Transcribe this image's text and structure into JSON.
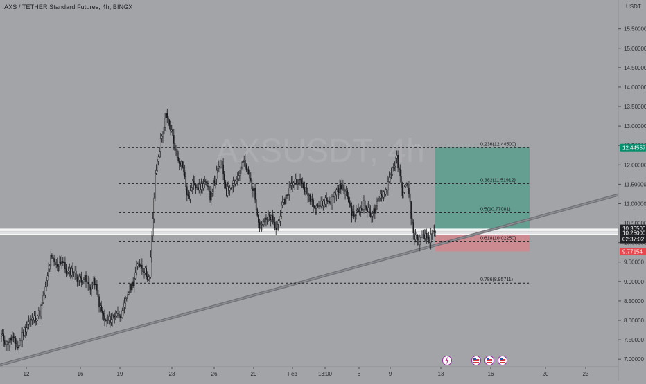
{
  "chart_data": {
    "type": "candlestick",
    "title": "AXS / TETHER Standard Futures, 4h, BINGX",
    "watermark": "AXSUSDT, 4h",
    "ylabel": "USDT",
    "ylim": [
      6.95,
      15.85
    ],
    "y_ticks": [
      "15.50000",
      "15.00000",
      "14.50000",
      "14.00000",
      "13.50000",
      "13.00000",
      "12.50000",
      "12.00000",
      "11.50000",
      "11.00000",
      "10.50000",
      "10.00000",
      "9.50000",
      "9.00000",
      "8.50000",
      "8.00000",
      "7.50000",
      "7.00000"
    ],
    "x_ticks": [
      "12",
      "16",
      "19",
      "23",
      "26",
      "29",
      "Feb",
      "13:00",
      "6",
      "9",
      "13",
      "16",
      "20",
      "23"
    ],
    "fib_levels": [
      {
        "label": "0.236(12.44500)",
        "value": 12.445
      },
      {
        "label": "0.382(11.51912)",
        "value": 11.519
      },
      {
        "label": "0.5(10.77081)",
        "value": 10.771
      },
      {
        "label": "0.618(10.02250)",
        "value": 10.0225
      },
      {
        "label": "0.786(8.95711)",
        "value": 8.957
      }
    ],
    "price_tags": {
      "target": "12.44557",
      "current": "10.36500",
      "level": "10.25000",
      "countdown": "02:37:02",
      "stop": "9.77154"
    },
    "position": {
      "entry": 10.25,
      "target": 12.44557,
      "stop": 9.77154
    },
    "horizontal_zone": [
      10.19,
      10.36
    ],
    "trendline": {
      "start_value": 6.85,
      "end_value": 11.23
    },
    "price_path": [
      7.6,
      7.4,
      7.55,
      7.3,
      7.7,
      7.95,
      8.05,
      8.2,
      8.8,
      9.6,
      9.4,
      9.55,
      9.2,
      9.3,
      9.05,
      9.1,
      8.85,
      9.0,
      8.3,
      7.95,
      8.05,
      8.2,
      8.15,
      8.7,
      9.0,
      9.5,
      9.3,
      9.05,
      11.7,
      12.6,
      13.25,
      12.85,
      12.2,
      12.0,
      11.1,
      11.6,
      11.4,
      11.55,
      11.2,
      11.7,
      12.05,
      11.3,
      11.55,
      11.65,
      12.1,
      11.75,
      11.3,
      10.45,
      10.55,
      10.65,
      10.35,
      10.85,
      11.25,
      11.55,
      11.6,
      11.45,
      11.2,
      11.0,
      10.95,
      11.1,
      11.05,
      11.35,
      11.45,
      11.2,
      10.7,
      10.8,
      11.0,
      10.75,
      10.8,
      11.2,
      11.35,
      11.85,
      12.15,
      11.3,
      11.5,
      10.2,
      10.05,
      10.15,
      10.1,
      10.25
    ]
  },
  "icons": {
    "event_1": "lightning-icon",
    "event_2": "us-flag-icon",
    "event_3": "us-flag-icon",
    "event_4": "us-flag-icon"
  },
  "colors": {
    "background": "#a3a4a8",
    "target_zone": "#5b9f8e",
    "stop_zone": "#d4868d",
    "target_tag": "#0b8e6e",
    "stop_tag": "#e5484e",
    "dark_tag": "#1f2024"
  }
}
